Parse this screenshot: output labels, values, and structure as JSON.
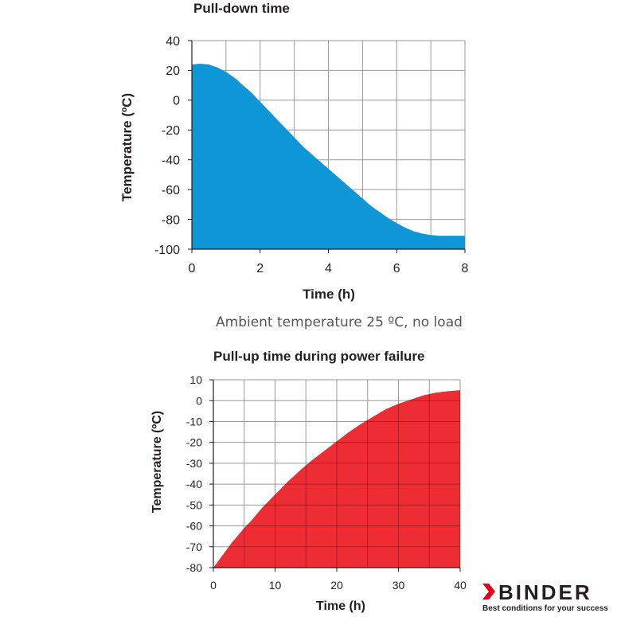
{
  "chart_data": [
    {
      "type": "area",
      "title": "Pull-down time",
      "xlabel": "Time (h)",
      "ylabel": "Temperature (ºC)",
      "xlim": [
        0,
        8
      ],
      "ylim": [
        -100,
        40
      ],
      "xticks": [
        0,
        2,
        4,
        6,
        8
      ],
      "yticks": [
        40,
        20,
        0,
        -20,
        -40,
        -60,
        -80,
        -100
      ],
      "grid": true,
      "fill_color": "#0f96d6",
      "x": [
        0,
        0.25,
        0.5,
        0.75,
        1,
        1.25,
        1.5,
        1.75,
        2,
        2.25,
        2.5,
        2.75,
        3,
        3.25,
        3.5,
        3.75,
        4,
        4.25,
        4.5,
        4.75,
        5,
        5.25,
        5.5,
        5.75,
        6,
        6.25,
        6.5,
        6.75,
        7,
        7.25,
        7.5,
        7.75,
        8
      ],
      "y": [
        24,
        24.5,
        24,
        22,
        19,
        15,
        10,
        5,
        -1,
        -7,
        -13,
        -19,
        -25,
        -31,
        -36,
        -41,
        -46,
        -51,
        -56,
        -61,
        -66,
        -71,
        -75,
        -79,
        -82.5,
        -85.5,
        -88,
        -89.5,
        -90.5,
        -91,
        -91,
        -91,
        -91
      ]
    },
    {
      "type": "area",
      "title": "Pull-up time during power failure",
      "xlabel": "Time (h)",
      "ylabel": "Temperature (ºC)",
      "xlim": [
        0,
        40
      ],
      "ylim": [
        -80,
        10
      ],
      "xticks": [
        0,
        10,
        20,
        30,
        40
      ],
      "yticks": [
        10,
        0,
        -10,
        -20,
        -30,
        -40,
        -50,
        -60,
        -70,
        -80
      ],
      "grid": true,
      "fill_color": "#ed1c24",
      "x": [
        0,
        1,
        2,
        3,
        4,
        5,
        6,
        8,
        10,
        12,
        14,
        16,
        18,
        20,
        22,
        24,
        26,
        28,
        30,
        32,
        34,
        36,
        38,
        40
      ],
      "y": [
        -80,
        -76,
        -72,
        -68,
        -64.5,
        -61,
        -58,
        -51,
        -45,
        -39,
        -33.5,
        -28.5,
        -24,
        -19.5,
        -15,
        -11,
        -7.5,
        -4,
        -1.5,
        0.5,
        2.5,
        3.8,
        4.5,
        5
      ]
    }
  ],
  "caption": "Ambient temperature 25 ºC, no load",
  "brand": {
    "name": "BINDER",
    "tagline": "Best conditions for your success"
  }
}
